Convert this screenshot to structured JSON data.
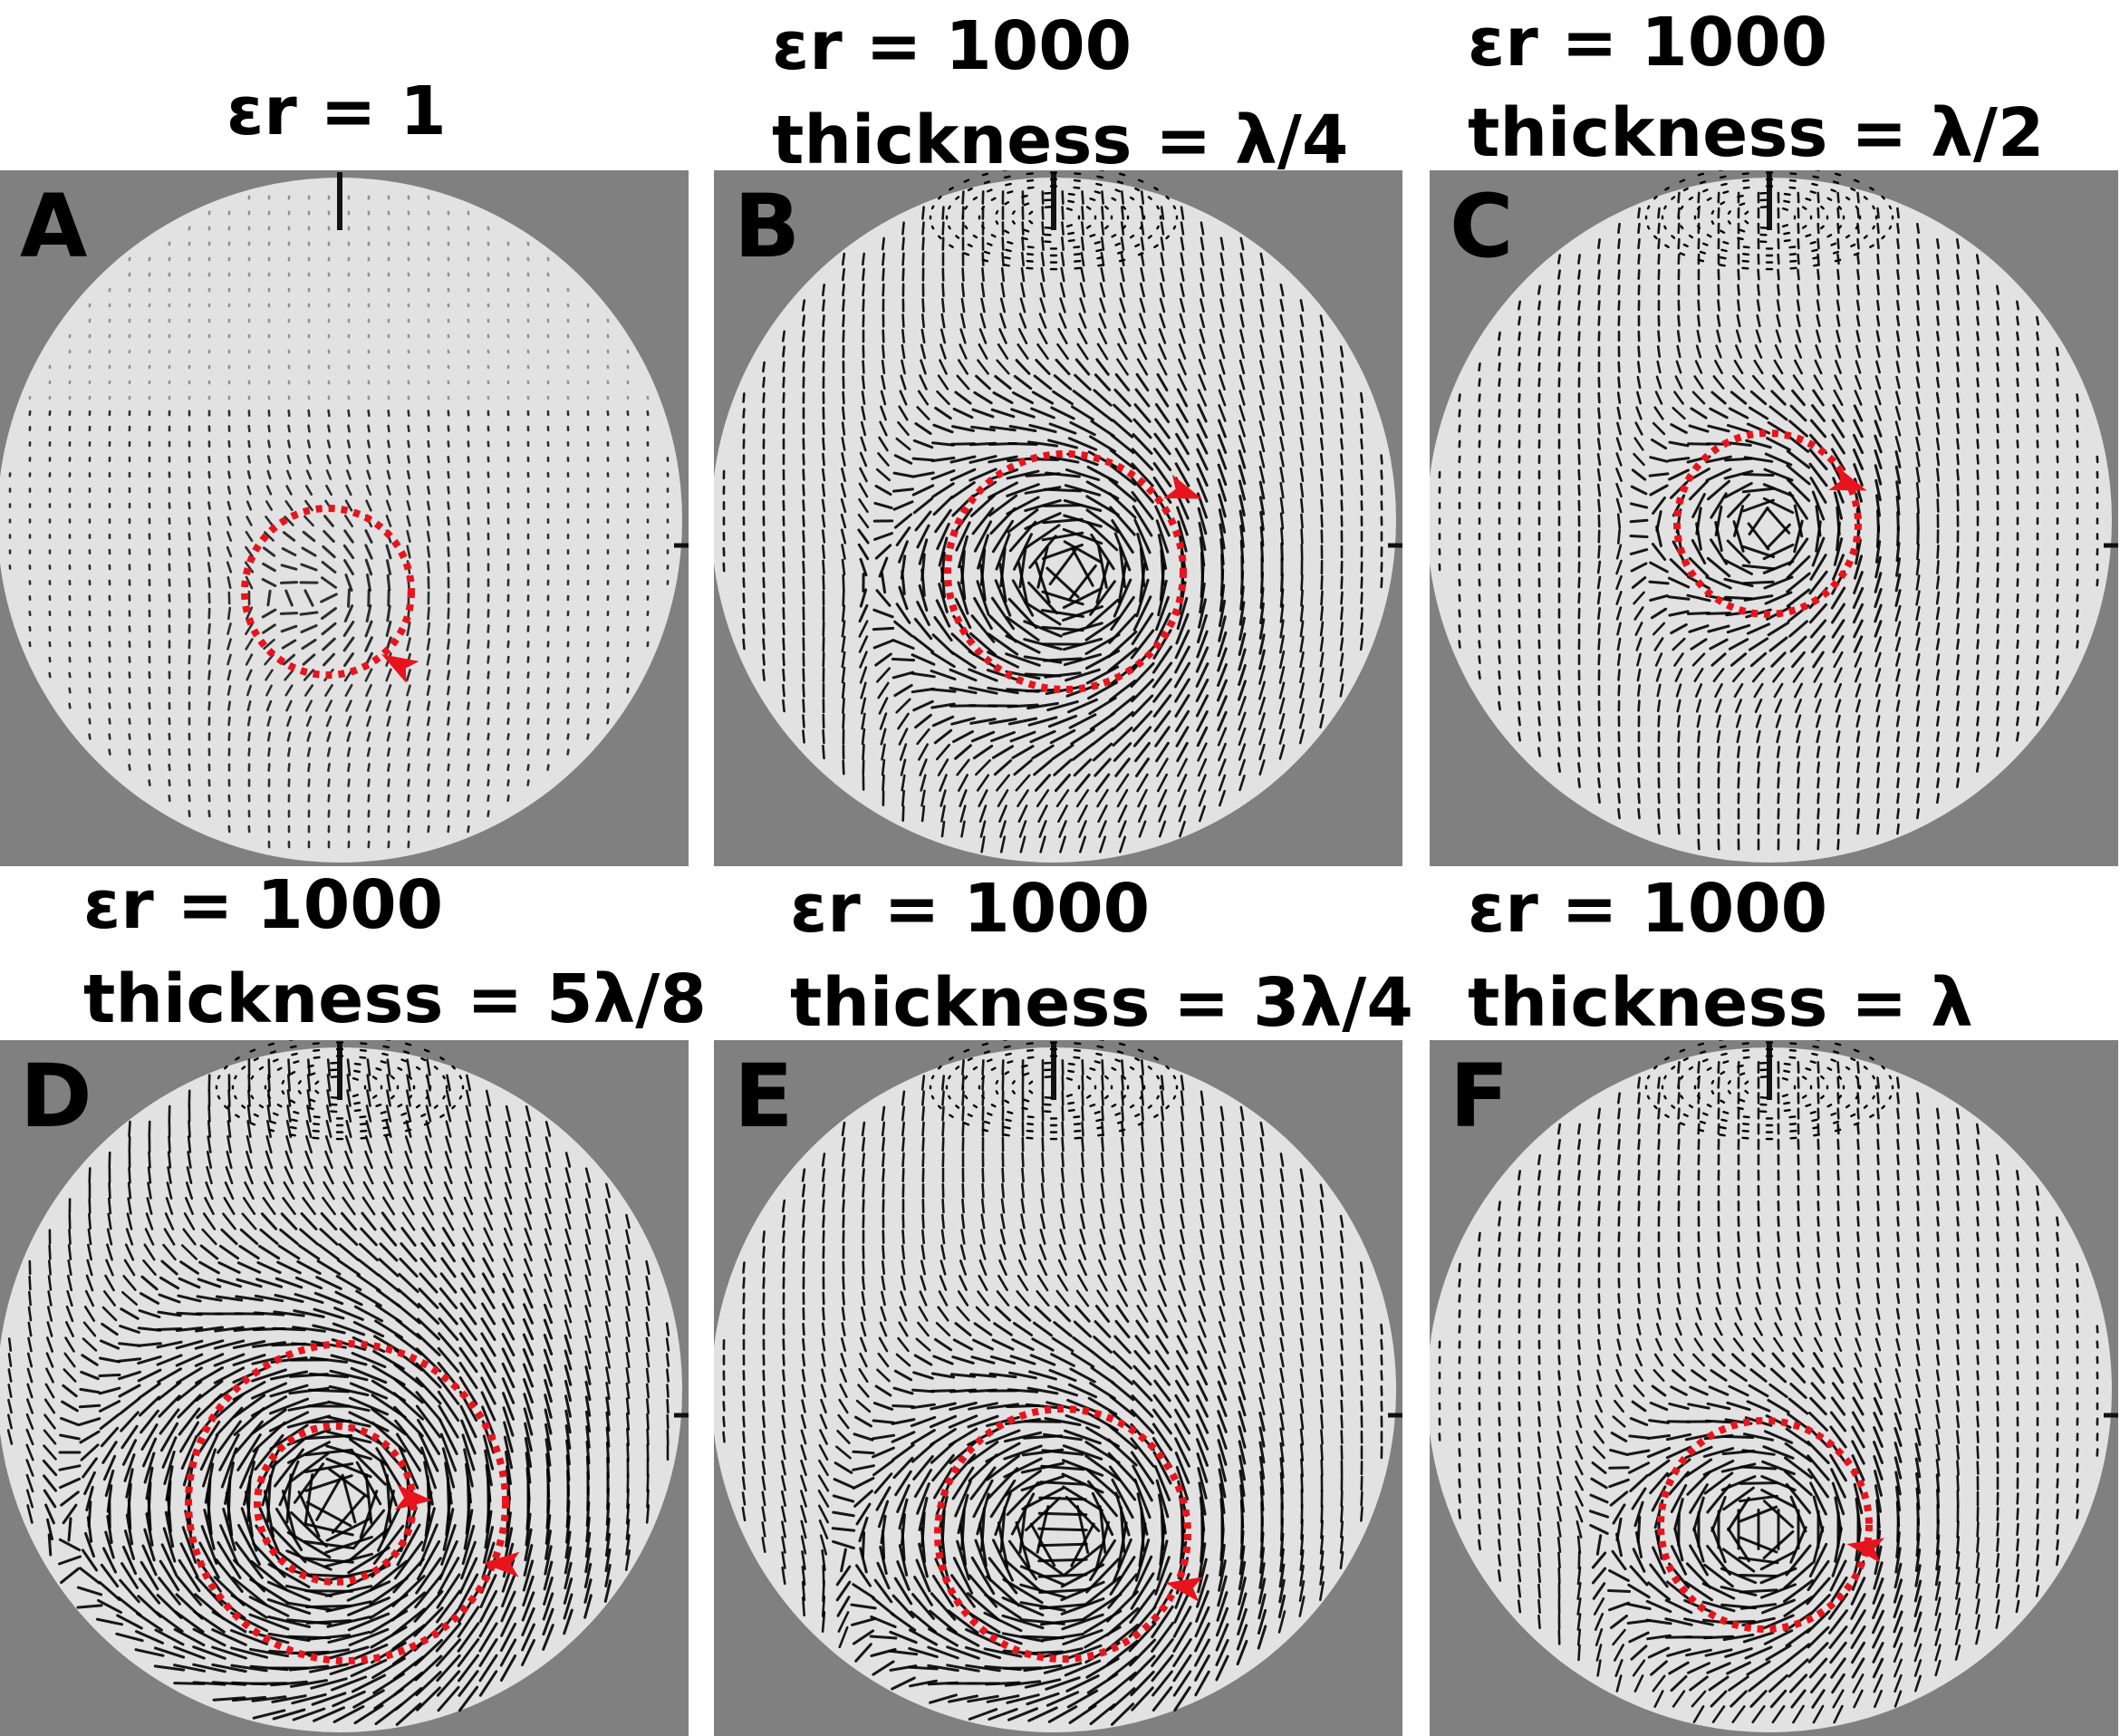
{
  "colors": {
    "panel_background": "#808080",
    "sphere_fill": "#e2e2e2",
    "arrow_marks": "#000000",
    "circulation_loop": "#e8141c"
  },
  "panels": [
    {
      "letter": "A",
      "line1": "εr = 1",
      "line2": ""
    },
    {
      "letter": "B",
      "line1": "εr = 1000",
      "line2": "thickness = λ/4"
    },
    {
      "letter": "C",
      "line1": "εr = 1000",
      "line2": "thickness = λ/2"
    },
    {
      "letter": "D",
      "line1": "εr = 1000",
      "line2": "thickness = 5λ/8"
    },
    {
      "letter": "E",
      "line1": "εr = 1000",
      "line2": "thickness = 3λ/4"
    },
    {
      "letter": "F",
      "line1": "εr = 1000",
      "line2": "thickness = λ"
    }
  ]
}
